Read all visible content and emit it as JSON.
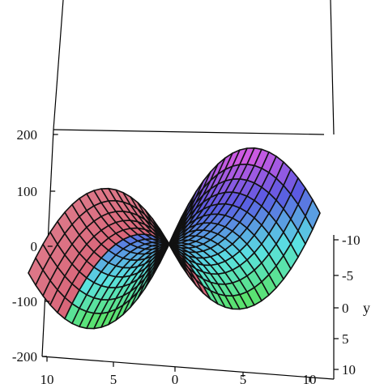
{
  "chart_data": {
    "type": "surface3d",
    "title": "",
    "function": "z = x^2 - y^2",
    "x": {
      "label": "",
      "range": [
        -10,
        10
      ],
      "ticks": [
        "10",
        "5",
        "0",
        "5",
        "10"
      ]
    },
    "y": {
      "label": "y",
      "range": [
        -10,
        10
      ],
      "ticks": [
        "-10",
        "-5",
        "0",
        "5",
        "10"
      ]
    },
    "z": {
      "label": "",
      "range": [
        -200,
        200
      ],
      "ticks": [
        "200",
        "100",
        "0",
        "-100",
        "-200"
      ]
    },
    "grid_resolution": 20,
    "coloring": "hue gradient by height: green (low) through cyan and blue to magenta, pink at x extremes",
    "colors": {
      "line": "#111111",
      "box": "#000000"
    }
  }
}
